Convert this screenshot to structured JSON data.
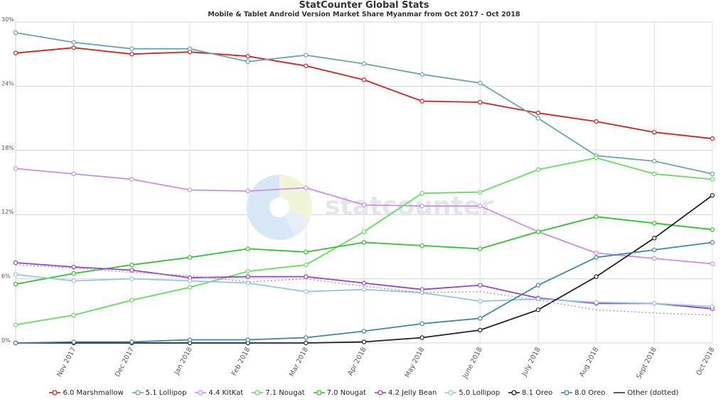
{
  "title": "StatCounter Global Stats",
  "subtitle": "Mobile & Tablet Android Version Market Share Myanmar from Oct 2017 - Oct 2018",
  "watermark": "statcounter",
  "colors": {
    "6.0 Marshmallow": "#d62020",
    "5.1 Lollipop": "#6aa4ac",
    "4.4 KitKat": "#c98fe6",
    "7.1 Nougat": "#5ee05a",
    "7.0 Nougat": "#2bc52b",
    "4.2 Jelly Bean": "#9b3fcf",
    "5.0 Lollipop": "#9ac4e4",
    "8.1 Oreo": "#222222",
    "8.0 Oreo": "#3f86a8",
    "Other (dotted)": "#999999"
  },
  "chart_data": {
    "type": "line",
    "ylim": [
      0,
      30
    ],
    "yticks": [
      "0%",
      "6%",
      "12%",
      "18%",
      "24%",
      "30%"
    ],
    "grid": true,
    "legend_position": "bottom",
    "categories": [
      "Oct 2017",
      "Nov 2017",
      "Dec 2017",
      "Jan 2018",
      "Feb 2018",
      "Mar 2018",
      "Apr 2018",
      "May 2018",
      "June 2018",
      "July 2018",
      "Aug 2018",
      "Sept 2018",
      "Oct 2018"
    ],
    "xticks": [
      "Nov 2017",
      "Dec 2017",
      "Jan 2018",
      "Feb 2018",
      "Mar 2018",
      "Apr 2018",
      "May 2018",
      "June 2018",
      "July 2018",
      "Aug 2018",
      "Sept 2018",
      "Oct 2018"
    ],
    "series": [
      {
        "name": "6.0 Marshmallow",
        "values": [
          27.1,
          27.6,
          27.0,
          27.2,
          26.8,
          25.9,
          24.6,
          22.6,
          22.5,
          21.5,
          20.7,
          19.7,
          19.1
        ]
      },
      {
        "name": "5.1 Lollipop",
        "values": [
          29.0,
          28.1,
          27.5,
          27.5,
          26.3,
          26.9,
          26.1,
          25.1,
          24.3,
          21.0,
          17.5,
          17.0,
          15.8
        ]
      },
      {
        "name": "4.4 KitKat",
        "values": [
          16.3,
          15.8,
          15.3,
          14.3,
          14.2,
          14.5,
          12.9,
          12.8,
          12.8,
          10.4,
          8.4,
          7.9,
          7.4
        ]
      },
      {
        "name": "7.1 Nougat",
        "values": [
          1.7,
          2.6,
          4.0,
          5.2,
          6.7,
          7.3,
          10.4,
          14.0,
          14.1,
          16.2,
          17.3,
          15.8,
          15.3
        ]
      },
      {
        "name": "7.0 Nougat",
        "values": [
          5.5,
          6.5,
          7.3,
          8.0,
          8.8,
          8.5,
          9.4,
          9.1,
          8.8,
          10.4,
          11.8,
          11.2,
          10.6
        ]
      },
      {
        "name": "4.2 Jelly Bean",
        "values": [
          7.5,
          7.1,
          6.8,
          6.1,
          6.2,
          6.2,
          5.6,
          5.0,
          5.4,
          4.2,
          3.7,
          3.7,
          3.2
        ]
      },
      {
        "name": "5.0 Lollipop",
        "values": [
          6.4,
          5.8,
          6.0,
          5.8,
          5.6,
          4.8,
          5.0,
          4.7,
          3.9,
          4.1,
          3.8,
          3.7,
          3.4
        ]
      },
      {
        "name": "8.1 Oreo",
        "values": [
          0.0,
          0.0,
          0.0,
          0.0,
          0.0,
          0.0,
          0.1,
          0.5,
          1.2,
          3.1,
          6.2,
          9.8,
          13.8
        ]
      },
      {
        "name": "8.0 Oreo",
        "values": [
          0.0,
          0.1,
          0.1,
          0.3,
          0.3,
          0.5,
          1.1,
          1.8,
          2.3,
          5.4,
          8.0,
          8.7,
          9.4
        ]
      },
      {
        "name": "Other (dotted)",
        "values": [
          7.3,
          7.0,
          6.6,
          6.3,
          5.7,
          6.0,
          5.3,
          4.7,
          4.8,
          4.0,
          3.1,
          2.8,
          2.6
        ]
      }
    ]
  }
}
